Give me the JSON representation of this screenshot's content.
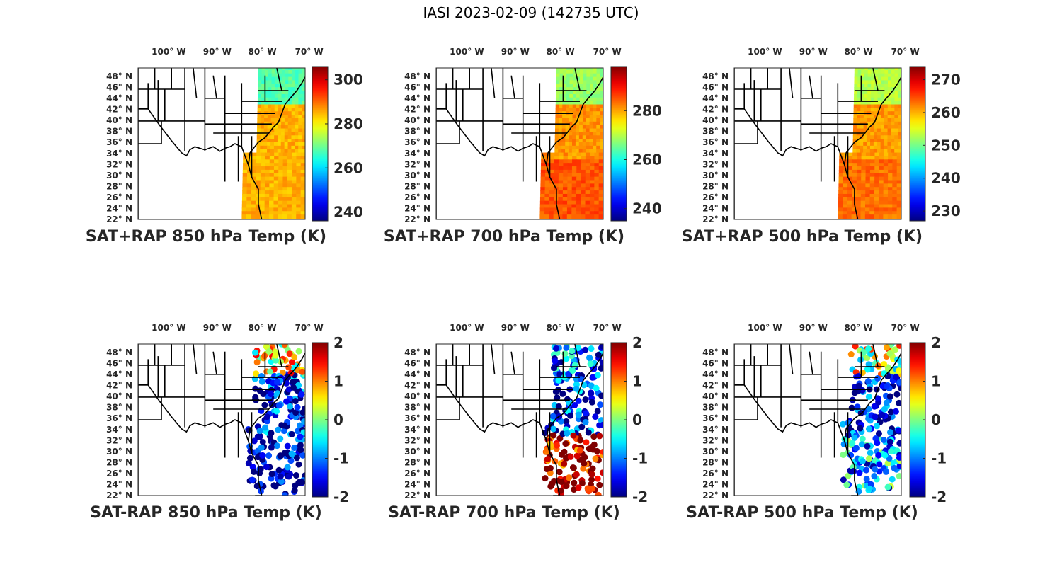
{
  "figure_title": "IASI 2023-02-09 (142735 UTC)",
  "colormap": "jet",
  "lon_ticks": [
    {
      "deg": "100",
      "hemi": "W"
    },
    {
      "deg": "90",
      "hemi": "W"
    },
    {
      "deg": "80",
      "hemi": "W"
    },
    {
      "deg": "70",
      "hemi": "W"
    }
  ],
  "lat_ticks": [
    {
      "deg": "48",
      "hemi": "N"
    },
    {
      "deg": "46",
      "hemi": "N"
    },
    {
      "deg": "44",
      "hemi": "N"
    },
    {
      "deg": "42",
      "hemi": "N"
    },
    {
      "deg": "40",
      "hemi": "N"
    },
    {
      "deg": "38",
      "hemi": "N"
    },
    {
      "deg": "36",
      "hemi": "N"
    },
    {
      "deg": "34",
      "hemi": "N"
    },
    {
      "deg": "32",
      "hemi": "N"
    },
    {
      "deg": "30",
      "hemi": "N"
    },
    {
      "deg": "28",
      "hemi": "N"
    },
    {
      "deg": "26",
      "hemi": "N"
    },
    {
      "deg": "24",
      "hemi": "N"
    },
    {
      "deg": "22",
      "hemi": "N"
    }
  ],
  "chart_data": [
    {
      "type": "heatmap",
      "title": "SAT+RAP 850 hPa Temp (K)",
      "lon_range": [
        -107,
        -67
      ],
      "lat_range": [
        22,
        49
      ],
      "clim": [
        236,
        306
      ],
      "colorbar_ticks": [
        "240",
        "260",
        "280",
        "300"
      ],
      "colorbar_tick_values": [
        240,
        260,
        280,
        300
      ],
      "swath_mean": {
        "north": 268,
        "mid": 285,
        "south": 285
      }
    },
    {
      "type": "heatmap",
      "title": "SAT+RAP 700 hPa Temp (K)",
      "lon_range": [
        -107,
        -67
      ],
      "lat_range": [
        22,
        49
      ],
      "clim": [
        235,
        298
      ],
      "colorbar_ticks": [
        "240",
        "260",
        "280"
      ],
      "colorbar_tick_values": [
        240,
        260,
        280
      ],
      "swath_mean": {
        "north": 268,
        "mid": 281,
        "south": 285
      }
    },
    {
      "type": "heatmap",
      "title": "SAT+RAP 500 hPa Temp (K)",
      "lon_range": [
        -107,
        -67
      ],
      "lat_range": [
        22,
        49
      ],
      "clim": [
        227,
        274
      ],
      "colorbar_ticks": [
        "230",
        "240",
        "250",
        "260",
        "270"
      ],
      "colorbar_tick_values": [
        230,
        240,
        250,
        260,
        270
      ],
      "swath_mean": {
        "north": 253,
        "mid": 261,
        "south": 263
      }
    },
    {
      "type": "scatter",
      "title": "SAT-RAP 850 hPa Temp (K)",
      "lon_range": [
        -107,
        -67
      ],
      "lat_range": [
        22,
        49
      ],
      "clim": [
        -2,
        2
      ],
      "colorbar_ticks": [
        "2",
        "1",
        "0",
        "-1",
        "-2"
      ],
      "colorbar_tick_values": [
        2,
        1,
        0,
        -1,
        -2
      ],
      "swath_mean": {
        "north": 0.5,
        "mid": -1.6,
        "south": -1.8
      }
    },
    {
      "type": "scatter",
      "title": "SAT-RAP 700 hPa Temp (K)",
      "lon_range": [
        -107,
        -67
      ],
      "lat_range": [
        22,
        49
      ],
      "clim": [
        -2,
        2
      ],
      "colorbar_ticks": [
        "2",
        "1",
        "0",
        "-1",
        "-2"
      ],
      "colorbar_tick_values": [
        2,
        1,
        0,
        -1,
        -2
      ],
      "swath_mean": {
        "north": -1.2,
        "mid": -1.5,
        "south": 1.8
      }
    },
    {
      "type": "scatter",
      "title": "SAT-RAP 500 hPa Temp (K)",
      "lon_range": [
        -107,
        -67
      ],
      "lat_range": [
        22,
        49
      ],
      "clim": [
        -2,
        2
      ],
      "colorbar_ticks": [
        "2",
        "1",
        "0",
        "-1",
        "-2"
      ],
      "colorbar_tick_values": [
        2,
        1,
        0,
        -1,
        -2
      ],
      "swath_mean": {
        "north": 0.3,
        "mid": -1.7,
        "south": -0.8
      }
    }
  ]
}
